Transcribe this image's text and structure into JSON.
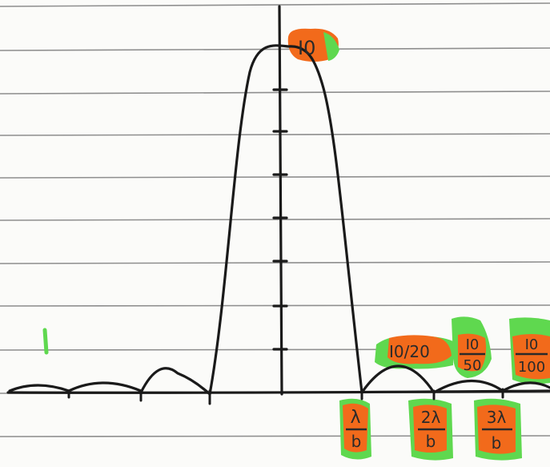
{
  "labels": {
    "peak": "I0",
    "secondary_max_1": "I0/20",
    "secondary_max_2": {
      "num": "I0",
      "den": "50"
    },
    "secondary_max_3": {
      "num": "I0",
      "den": "100"
    },
    "min_1": {
      "num": "λ",
      "den": "b"
    },
    "min_2": {
      "num": "2λ",
      "den": "b"
    },
    "min_3": {
      "num": "3λ",
      "den": "b"
    }
  },
  "colors": {
    "paper": "#fbfbf9",
    "rule_line": "#8e8e8e",
    "ink": "#1a1a1a",
    "highlight_orange": "#f26a1b",
    "highlight_green": "#5fd84f"
  }
}
